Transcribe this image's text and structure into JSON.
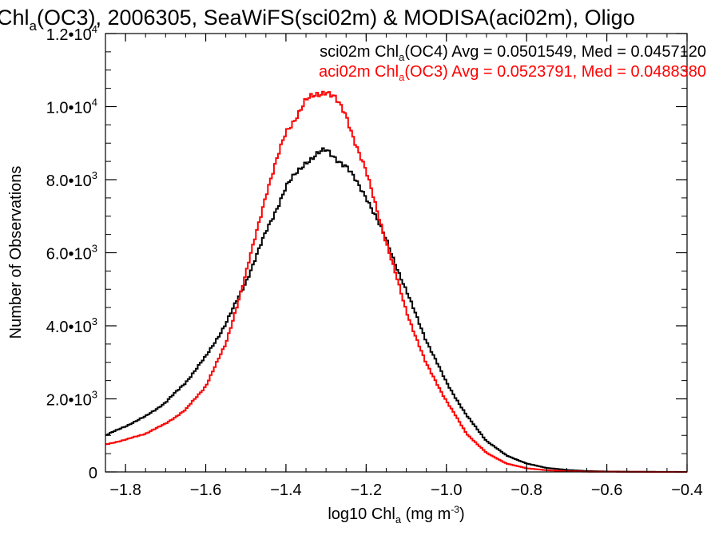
{
  "chart_data": {
    "type": "line",
    "title_parts": [
      "Chl",
      "a",
      "(OC3), 2006305, SeaWiFS(sci02m) & MODISA(aci02m), Oligo"
    ],
    "xlabel_parts": [
      "log10 Chl",
      "a",
      " (mg m",
      "-3",
      ")"
    ],
    "ylabel": "Number of Observations",
    "xlim": [
      -1.85,
      -0.4
    ],
    "ylim": [
      0,
      12000
    ],
    "x_ticks": [
      {
        "value": -1.8,
        "label": "−1.8"
      },
      {
        "value": -1.6,
        "label": "−1.6"
      },
      {
        "value": -1.4,
        "label": "−1.4"
      },
      {
        "value": -1.2,
        "label": "−1.2"
      },
      {
        "value": -1.0,
        "label": "−1.0"
      },
      {
        "value": -0.8,
        "label": "−0.8"
      },
      {
        "value": -0.6,
        "label": "−0.6"
      },
      {
        "value": -0.4,
        "label": "−0.4"
      }
    ],
    "y_ticks": [
      {
        "value": 0,
        "mantissa": "0",
        "exponent": ""
      },
      {
        "value": 2000,
        "mantissa": "2.0•10",
        "exponent": "3"
      },
      {
        "value": 4000,
        "mantissa": "4.0•10",
        "exponent": "3"
      },
      {
        "value": 6000,
        "mantissa": "6.0•10",
        "exponent": "3"
      },
      {
        "value": 8000,
        "mantissa": "8.0•10",
        "exponent": "3"
      },
      {
        "value": 10000,
        "mantissa": "1.0•10",
        "exponent": "4"
      },
      {
        "value": 12000,
        "mantissa": "1.2•10",
        "exponent": "4"
      }
    ],
    "legend_placement": "top-right",
    "grid": false,
    "step_style": "histogram",
    "series": [
      {
        "legend_parts": [
          "sci02m Chl",
          "a",
          "(OC4) Avg = 0.0501549, Med = 0.0457120"
        ],
        "color": "#000000",
        "x": [
          -1.85,
          -1.8,
          -1.75,
          -1.7,
          -1.65,
          -1.6,
          -1.55,
          -1.5,
          -1.45,
          -1.4,
          -1.35,
          -1.32,
          -1.3,
          -1.28,
          -1.25,
          -1.2,
          -1.15,
          -1.1,
          -1.05,
          -1.0,
          -0.95,
          -0.9,
          -0.85,
          -0.8,
          -0.75,
          -0.7,
          -0.65,
          -0.6,
          -0.5,
          -0.4
        ],
        "y": [
          1000,
          1250,
          1520,
          1900,
          2450,
          3150,
          4050,
          5200,
          6550,
          7800,
          8500,
          8700,
          8800,
          8650,
          8350,
          7550,
          6350,
          4950,
          3600,
          2450,
          1550,
          850,
          450,
          230,
          110,
          55,
          25,
          12,
          4,
          0
        ]
      },
      {
        "legend_parts": [
          "aci02m Chl",
          "a",
          "(OC3) Avg = 0.0523791, Med = 0.0488380"
        ],
        "color": "#ff0000",
        "x": [
          -1.85,
          -1.8,
          -1.75,
          -1.7,
          -1.65,
          -1.6,
          -1.55,
          -1.5,
          -1.45,
          -1.4,
          -1.35,
          -1.32,
          -1.3,
          -1.28,
          -1.25,
          -1.2,
          -1.15,
          -1.1,
          -1.05,
          -1.0,
          -0.95,
          -0.9,
          -0.85,
          -0.8,
          -0.75,
          -0.7,
          -0.65,
          -0.6,
          -0.5,
          -0.4
        ],
        "y": [
          750,
          880,
          1050,
          1320,
          1700,
          2350,
          3500,
          5400,
          7600,
          9300,
          10150,
          10350,
          10450,
          10250,
          9750,
          8200,
          6300,
          4400,
          2950,
          1950,
          1050,
          520,
          230,
          100,
          45,
          20,
          8,
          4,
          1,
          0
        ]
      }
    ]
  }
}
